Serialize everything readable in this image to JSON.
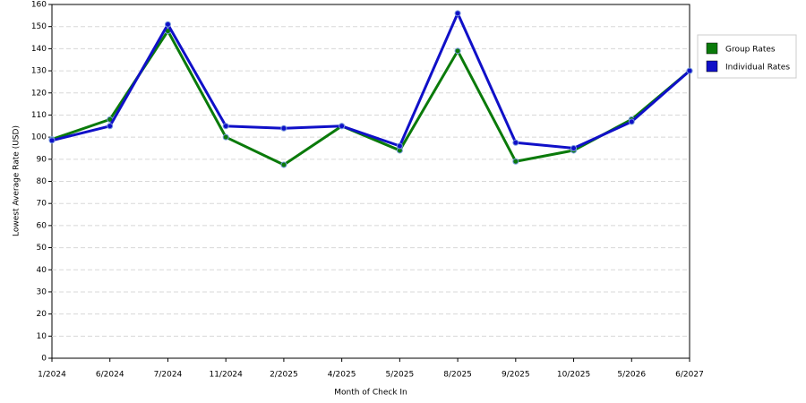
{
  "chart_data": {
    "type": "line",
    "x_label": "Month of Check In",
    "y_label": "Lowest Average Rate (USD)",
    "categories": [
      "1/2024",
      "6/2024",
      "7/2024",
      "11/2024",
      "2/2025",
      "4/2025",
      "5/2025",
      "8/2025",
      "9/2025",
      "10/2025",
      "5/2026",
      "6/2027"
    ],
    "series": [
      {
        "name": "Group Rates",
        "color": "#0a7a0a",
        "values": [
          99,
          108,
          148,
          100,
          87.5,
          105,
          94,
          139,
          89,
          94,
          108,
          130
        ]
      },
      {
        "name": "Individual Rates",
        "color": "#1010c8",
        "values": [
          98.5,
          105,
          151,
          105,
          104,
          105,
          96,
          156,
          97.5,
          95,
          107,
          130
        ]
      }
    ],
    "ylim": [
      0,
      160
    ],
    "yticks": [
      0,
      10,
      20,
      30,
      40,
      50,
      60,
      70,
      80,
      90,
      100,
      110,
      120,
      130,
      140,
      150,
      160
    ],
    "grid": true,
    "legend": "right"
  }
}
